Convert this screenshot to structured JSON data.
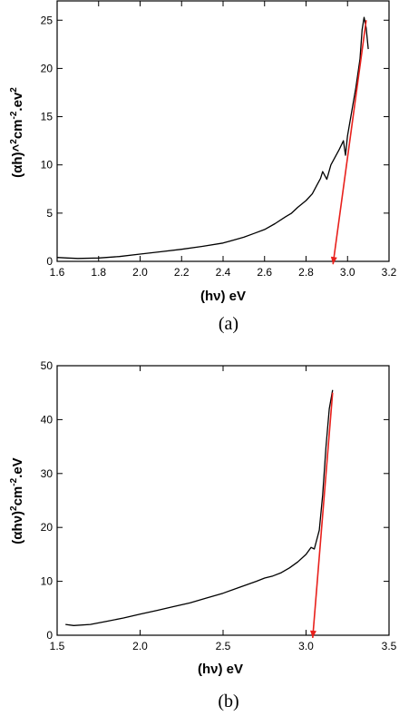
{
  "chart_data": [
    {
      "type": "line",
      "panel_label": "(a)",
      "xlabel": "(hν) eV",
      "ylabel_parts": [
        "(αh)^",
        "2",
        "cm",
        "-2",
        ".ev",
        "2"
      ],
      "xlim": [
        1.6,
        3.2
      ],
      "ylim": [
        0,
        27
      ],
      "xticks": [
        1.6,
        1.8,
        2.0,
        2.2,
        2.4,
        2.6,
        2.8,
        3.0,
        3.2
      ],
      "xtick_labels": [
        "1.6",
        "1.8",
        "2.0",
        "2.2",
        "2.4",
        "2.6",
        "2.8",
        "3.0",
        "3.2"
      ],
      "yticks": [
        0,
        5,
        10,
        15,
        20,
        25
      ],
      "ytick_labels": [
        "0",
        "5",
        "10",
        "15",
        "20",
        "25"
      ],
      "grid": false,
      "series": [
        {
          "x": [
            1.6,
            1.65,
            1.7,
            1.8,
            1.9,
            2.0,
            2.1,
            2.2,
            2.3,
            2.4,
            2.45,
            2.5,
            2.55,
            2.6,
            2.65,
            2.7,
            2.73,
            2.76,
            2.8,
            2.83,
            2.85,
            2.87,
            2.88,
            2.9,
            2.92,
            2.94,
            2.96,
            2.98,
            2.99,
            3.0,
            3.02,
            3.04,
            3.06,
            3.07,
            3.08,
            3.09,
            3.1
          ],
          "y": [
            0.4,
            0.35,
            0.3,
            0.35,
            0.5,
            0.75,
            1.0,
            1.25,
            1.55,
            1.9,
            2.2,
            2.5,
            2.9,
            3.3,
            3.9,
            4.6,
            5.0,
            5.6,
            6.3,
            7.0,
            7.8,
            8.6,
            9.3,
            8.5,
            10.0,
            10.8,
            11.6,
            12.5,
            11.0,
            13.0,
            15.5,
            18.0,
            21.0,
            24.0,
            25.3,
            24.2,
            22.0
          ],
          "color": "#000000"
        }
      ],
      "fit_line": {
        "x": [
          2.93,
          3.09
        ],
        "y": [
          -0.3,
          25.0
        ],
        "color": "#e8201c"
      }
    },
    {
      "type": "line",
      "panel_label": "(b)",
      "xlabel": "(hν) eV",
      "ylabel_parts": [
        "(αhν)",
        "2",
        "cm",
        "-2",
        ".eV",
        ""
      ],
      "xlim": [
        1.5,
        3.5
      ],
      "ylim": [
        0,
        50
      ],
      "xticks": [
        1.5,
        2.0,
        2.5,
        3.0,
        3.5
      ],
      "xtick_labels": [
        "1.5",
        "2.0",
        "2.5",
        "3.0",
        "3.5"
      ],
      "yticks": [
        0,
        10,
        20,
        30,
        40,
        50
      ],
      "ytick_labels": [
        "0",
        "10",
        "20",
        "30",
        "40",
        "50"
      ],
      "grid": false,
      "series": [
        {
          "x": [
            1.55,
            1.6,
            1.7,
            1.8,
            1.9,
            2.0,
            2.1,
            2.2,
            2.3,
            2.4,
            2.5,
            2.6,
            2.7,
            2.75,
            2.8,
            2.85,
            2.9,
            2.95,
            3.0,
            3.03,
            3.05,
            3.08,
            3.1,
            3.12,
            3.14,
            3.16
          ],
          "y": [
            2.0,
            1.8,
            2.0,
            2.6,
            3.2,
            3.9,
            4.6,
            5.3,
            6.0,
            6.9,
            7.8,
            8.9,
            10.0,
            10.6,
            11.0,
            11.6,
            12.5,
            13.6,
            15.0,
            16.3,
            16.0,
            19.5,
            26.0,
            35.0,
            42.0,
            45.5
          ],
          "color": "#000000"
        }
      ],
      "fit_line": {
        "x": [
          3.04,
          3.16
        ],
        "y": [
          -0.5,
          45.0
        ],
        "color": "#e8201c"
      }
    }
  ]
}
